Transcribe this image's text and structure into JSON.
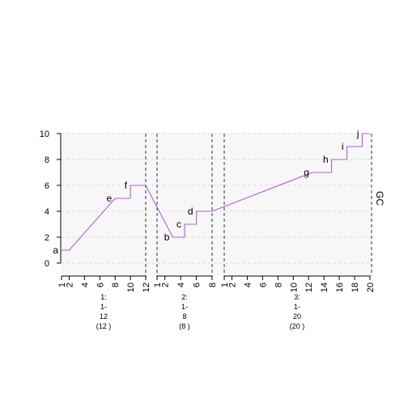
{
  "chart_data": {
    "type": "line",
    "ylabel": "GC",
    "ylim": [
      -0.9,
      10.4
    ],
    "yticks": [
      0,
      2,
      4,
      6,
      8,
      10
    ],
    "grid": true,
    "line_color": "#b05ce6",
    "segments": [
      {
        "x_max": 12,
        "xticks": [
          1,
          2,
          4,
          6,
          8,
          10,
          12
        ],
        "label_lines": [
          "1:",
          "1-",
          "12",
          "(12 )"
        ]
      },
      {
        "x_max": 8,
        "xticks": [
          1,
          2,
          4,
          6,
          8
        ],
        "label_lines": [
          "2:",
          "1-",
          "8",
          "(8 )"
        ]
      },
      {
        "x_max": 20,
        "xticks": [
          1,
          2,
          4,
          6,
          8,
          10,
          12,
          14,
          16,
          18,
          20
        ],
        "label_lines": [
          "3:",
          "1-",
          "20",
          "(20 )"
        ]
      }
    ],
    "points": [
      {
        "seg": 0,
        "x": 1,
        "y": 1,
        "label": "a"
      },
      {
        "seg": 0,
        "x": 2,
        "y": 1,
        "label": ""
      },
      {
        "seg": 0,
        "x": 8,
        "y": 5,
        "label": "e"
      },
      {
        "seg": 0,
        "x": 10,
        "y": 5,
        "label": ""
      },
      {
        "seg": 0,
        "x": 10,
        "y": 6,
        "label": "f"
      },
      {
        "seg": 0,
        "x": 12,
        "y": 6,
        "label": ""
      },
      {
        "seg": 1,
        "x": 3,
        "y": 2,
        "label": "b"
      },
      {
        "seg": 1,
        "x": 4.5,
        "y": 2,
        "label": ""
      },
      {
        "seg": 1,
        "x": 4.5,
        "y": 3,
        "label": "c"
      },
      {
        "seg": 1,
        "x": 6,
        "y": 3,
        "label": ""
      },
      {
        "seg": 1,
        "x": 6,
        "y": 4,
        "label": "d"
      },
      {
        "seg": 1,
        "x": 8,
        "y": 4,
        "label": ""
      },
      {
        "seg": 2,
        "x": 12.5,
        "y": 7,
        "label": "g"
      },
      {
        "seg": 2,
        "x": 15,
        "y": 7,
        "label": ""
      },
      {
        "seg": 2,
        "x": 15,
        "y": 8,
        "label": "h"
      },
      {
        "seg": 2,
        "x": 17,
        "y": 8,
        "label": ""
      },
      {
        "seg": 2,
        "x": 17,
        "y": 9,
        "label": "i"
      },
      {
        "seg": 2,
        "x": 19,
        "y": 9,
        "label": ""
      },
      {
        "seg": 2,
        "x": 19,
        "y": 10,
        "label": "j"
      },
      {
        "seg": 2,
        "x": 20,
        "y": 10,
        "label": ""
      }
    ]
  }
}
